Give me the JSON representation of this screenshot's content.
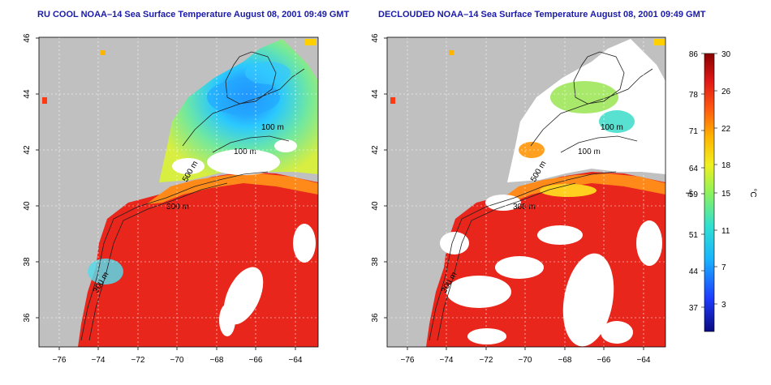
{
  "left_panel": {
    "title": "RU COOL NOAA–14 Sea Surface Temperature August 08, 2001 09:49 GMT",
    "contour_labels": [
      "100 m",
      "100 m",
      "500 m",
      "300 m",
      "300 m"
    ]
  },
  "right_panel": {
    "title": "DECLOUDED NOAA–14 Sea Surface Temperature August 08, 2001 09:49 GMT",
    "contour_labels": [
      "100 m",
      "100 m",
      "500 m",
      "300 m",
      "300 m"
    ]
  },
  "x_ticks": [
    "−76",
    "−74",
    "−72",
    "−70",
    "−68",
    "−66",
    "−64"
  ],
  "y_ticks": [
    "36",
    "38",
    "40",
    "42",
    "44",
    "46"
  ],
  "colorbar": {
    "f_label": "°F",
    "c_label": "°C",
    "f_ticks": [
      "86",
      "78",
      "71",
      "64",
      "59",
      "51",
      "44",
      "37"
    ],
    "c_ticks": [
      "30",
      "26",
      "22",
      "18",
      "15",
      "11",
      "7",
      "3"
    ]
  },
  "colors": {
    "land": "#c0c0c0",
    "cloud": "#ffffff",
    "warm": "#e8261b",
    "title": "#1a1aa8"
  }
}
